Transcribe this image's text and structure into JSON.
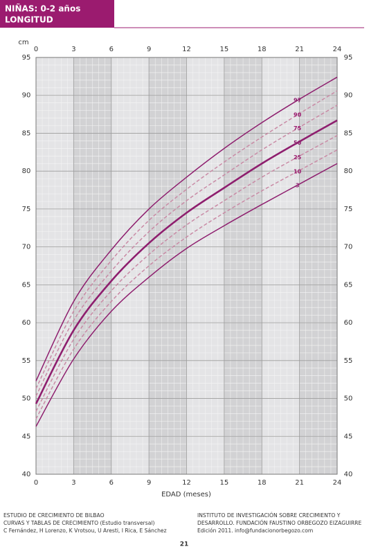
{
  "header": {
    "title": "NIÑAS: 0-2 años",
    "subtitle": "LONGITUD"
  },
  "chart_data": {
    "type": "line",
    "y_unit_label": "cm",
    "xlabel": "EDAD (meses)",
    "x": [
      0,
      3,
      6,
      9,
      12,
      15,
      18,
      21,
      24
    ],
    "xlim": [
      0,
      24
    ],
    "xticks": [
      0,
      3,
      6,
      9,
      12,
      15,
      18,
      21,
      24
    ],
    "ylim": [
      40,
      95
    ],
    "yticks": [
      40,
      45,
      50,
      55,
      60,
      65,
      70,
      75,
      80,
      85,
      90,
      95
    ],
    "grid": true,
    "series": [
      {
        "name": "97",
        "color": "#8e1e6e",
        "style": "solid",
        "values": [
          52.3,
          62.8,
          69.6,
          75.0,
          79.2,
          83.0,
          86.4,
          89.5,
          92.4
        ]
      },
      {
        "name": "90",
        "color": "#c98aa5",
        "style": "dashed",
        "values": [
          51.3,
          61.5,
          68.2,
          73.5,
          77.6,
          81.2,
          84.5,
          87.6,
          90.6
        ]
      },
      {
        "name": "75",
        "color": "#c98aa5",
        "style": "dashed",
        "values": [
          50.3,
          60.3,
          66.8,
          72.0,
          76.1,
          79.5,
          82.8,
          85.8,
          88.7
        ]
      },
      {
        "name": "50",
        "color": "#8e1e6e",
        "style": "bold",
        "values": [
          49.3,
          59.0,
          65.5,
          70.5,
          74.5,
          77.8,
          81.0,
          83.9,
          86.7
        ]
      },
      {
        "name": "25",
        "color": "#c98aa5",
        "style": "dashed",
        "values": [
          48.3,
          57.8,
          64.2,
          69.0,
          72.9,
          76.1,
          79.2,
          82.0,
          84.7
        ]
      },
      {
        "name": "10",
        "color": "#c98aa5",
        "style": "dashed",
        "values": [
          47.3,
          56.5,
          62.8,
          67.5,
          71.3,
          74.5,
          77.4,
          80.1,
          82.8
        ]
      },
      {
        "name": "3",
        "color": "#8e1e6e",
        "style": "solid",
        "values": [
          46.3,
          55.2,
          61.5,
          66.0,
          69.8,
          72.8,
          75.6,
          78.3,
          81.0
        ]
      }
    ]
  },
  "footer": {
    "left": [
      "ESTUDIO DE CRECIMIENTO DE BILBAO",
      "CURVAS Y TABLAS DE CRECIMIENTO (Estudio transversal)",
      "C Fernández, H Lorenzo, K Vrotsou, U Aresti, I Rica, E Sánchez"
    ],
    "right": [
      "INSTITUTO DE INVESTIGACIÓN SOBRE CRECIMIENTO Y",
      "DESARROLLO. FUNDACIÓN FAUSTINO ORBEGOZO EIZAGUIRRE",
      "Edición 2011. info@fundacionorbegozo.com"
    ],
    "page": "21"
  }
}
